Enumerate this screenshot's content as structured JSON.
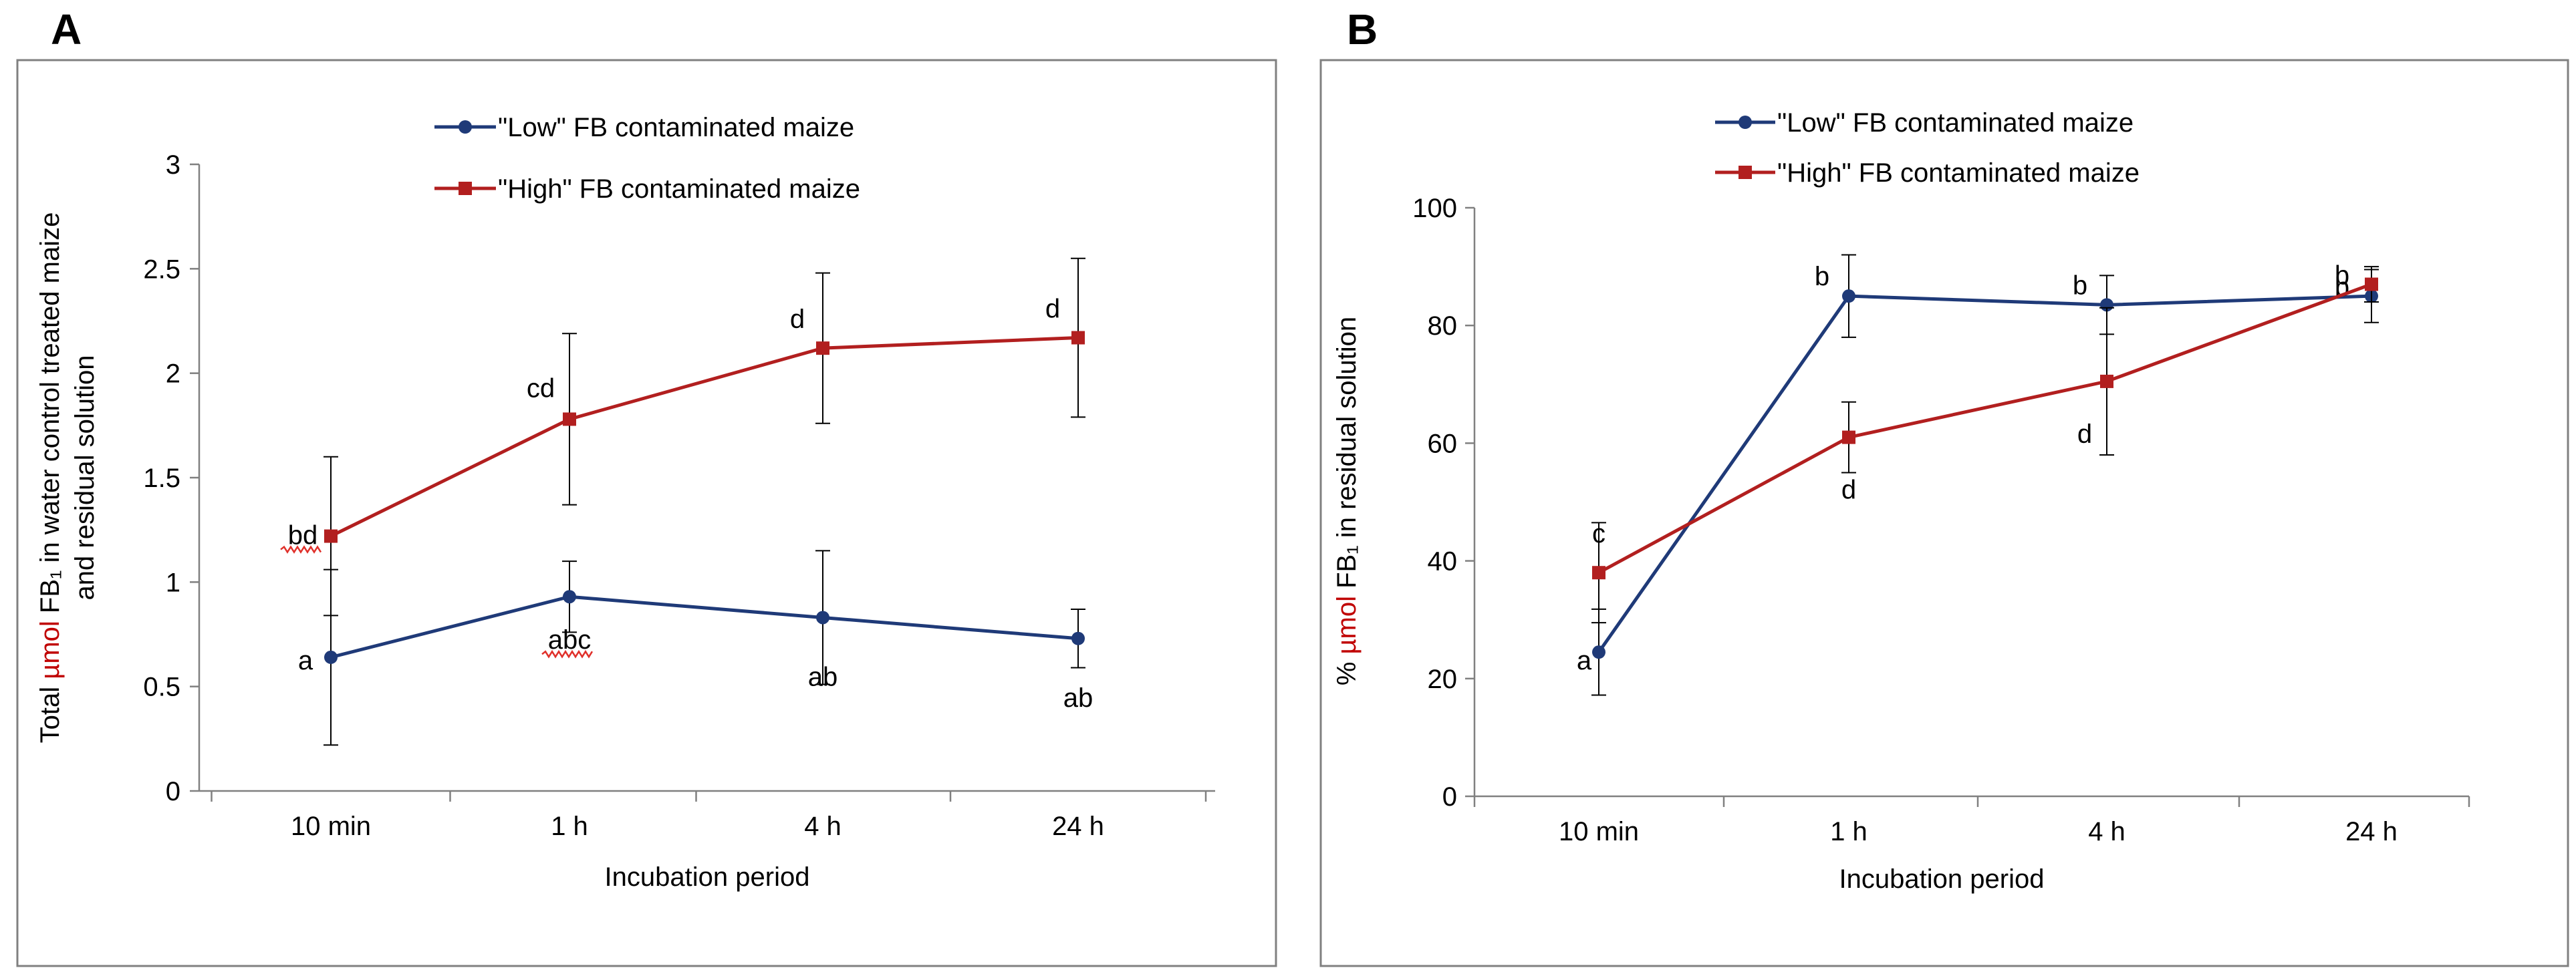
{
  "colors": {
    "low": "#1f3a78",
    "high": "#b21f1f",
    "squiggle": "#e0302a",
    "frame": "#808080"
  },
  "chart_data": [
    {
      "panel": "A",
      "type": "line",
      "categories": [
        "10 min",
        "1 h",
        "4 h",
        "24 h"
      ],
      "xlabel": "Incubation period",
      "ylabel": {
        "prefix": "Total ",
        "unit": "µmol",
        "suffix": " FB₁ in water control treated maize",
        "line2": "and residual solution"
      },
      "ylim": [
        0,
        3
      ],
      "yticks": [
        "0",
        "0.5",
        "1",
        "1.5",
        "2",
        "2.5",
        "3"
      ],
      "legend_position": "top",
      "series": [
        {
          "name": "\"Low\" FB contaminated maize",
          "marker": "circle",
          "values": [
            0.64,
            0.93,
            0.83,
            0.73
          ],
          "errors": [
            0.42,
            0.17,
            0.32,
            0.14
          ],
          "labels": [
            "a",
            "abc",
            "ab",
            "ab"
          ]
        },
        {
          "name": "\"High\" FB contaminated maize",
          "marker": "square",
          "values": [
            1.22,
            1.78,
            2.12,
            2.17
          ],
          "errors": [
            0.38,
            0.41,
            0.36,
            0.38
          ],
          "labels": [
            "bd",
            "cd",
            "d",
            "d"
          ]
        }
      ]
    },
    {
      "panel": "B",
      "type": "line",
      "categories": [
        "10 min",
        "1 h",
        "4 h",
        "24 h"
      ],
      "xlabel": "Incubation period",
      "ylabel": {
        "prefix": "% ",
        "unit": "µmol",
        "suffix": " FB₁ in residual solution",
        "line2": ""
      },
      "ylim": [
        0,
        100
      ],
      "yticks": [
        "0",
        "20",
        "40",
        "60",
        "80",
        "100"
      ],
      "legend_position": "top",
      "series": [
        {
          "name": "\"Low\" FB contaminated maize",
          "marker": "circle",
          "values": [
            24.5,
            85.0,
            83.5,
            85.0
          ],
          "errors": [
            7.3,
            7.0,
            5.0,
            4.5
          ],
          "labels": [
            "a",
            "b",
            "b",
            "b"
          ]
        },
        {
          "name": "\"High\" FB contaminated maize",
          "marker": "square",
          "values": [
            38.0,
            61.0,
            70.5,
            87.0
          ],
          "errors": [
            8.5,
            6.0,
            12.5,
            3.0
          ],
          "labels": [
            "c",
            "d",
            "d",
            "b"
          ]
        }
      ]
    }
  ]
}
